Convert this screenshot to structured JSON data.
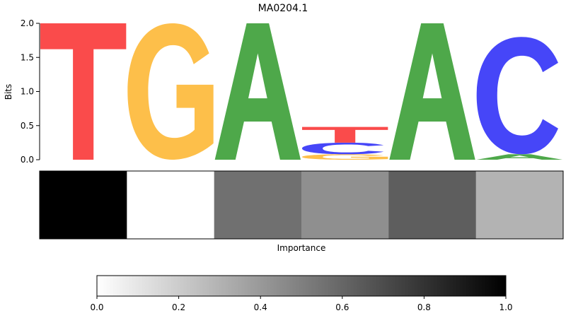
{
  "chart_data": [
    {
      "type": "sequence-logo",
      "title": "MA0204.1",
      "ylabel": "Bits",
      "ylim": [
        0,
        2.0
      ],
      "yticks": [
        "0.0",
        "0.5",
        "1.0",
        "1.5",
        "2.0"
      ],
      "colors": {
        "A": "#4ea84a",
        "C": "#4646f8",
        "G": "#fdbf4a",
        "T": "#fa4b4b"
      },
      "positions": [
        {
          "position": 1,
          "letters": [
            {
              "base": "T",
              "bits": 2.0
            }
          ]
        },
        {
          "position": 2,
          "letters": [
            {
              "base": "G",
              "bits": 2.0
            }
          ]
        },
        {
          "position": 3,
          "letters": [
            {
              "base": "A",
              "bits": 2.0
            }
          ]
        },
        {
          "position": 4,
          "letters": [
            {
              "base": "G",
              "bits": 0.08
            },
            {
              "base": "C",
              "bits": 0.17
            },
            {
              "base": "T",
              "bits": 0.23
            }
          ]
        },
        {
          "position": 5,
          "letters": [
            {
              "base": "A",
              "bits": 2.0
            }
          ]
        },
        {
          "position": 6,
          "letters": [
            {
              "base": "A",
              "bits": 0.08
            },
            {
              "base": "C",
              "bits": 1.72
            }
          ]
        }
      ]
    },
    {
      "type": "heatmap",
      "xlabel": "Importance",
      "values": [
        1.0,
        0.0,
        0.56,
        0.44,
        0.63,
        0.3
      ]
    },
    {
      "type": "colorbar",
      "range": [
        0.0,
        1.0
      ],
      "ticks": [
        "0.0",
        "0.2",
        "0.4",
        "0.6",
        "0.8",
        "1.0"
      ],
      "colormap": "Greys"
    }
  ]
}
